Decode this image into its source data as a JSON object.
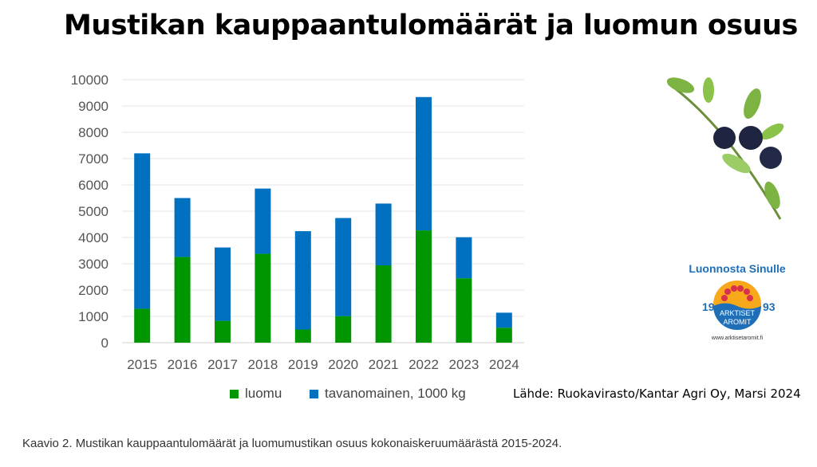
{
  "chart_data": {
    "type": "bar",
    "stacked": true,
    "title": "Mustikan kauppaantulomäärät ja luomun osuus",
    "categories": [
      "2015",
      "2016",
      "2017",
      "2018",
      "2019",
      "2020",
      "2021",
      "2022",
      "2023",
      "2024"
    ],
    "series": [
      {
        "name": "luomu",
        "color": "#009600",
        "values": [
          1290,
          3260,
          830,
          3380,
          500,
          1010,
          2940,
          4270,
          2450,
          570
        ]
      },
      {
        "name": "tavanomainen, 1000 kg",
        "color": "#0070C0",
        "values": [
          5910,
          2240,
          2790,
          2480,
          3740,
          3730,
          2350,
          5070,
          1560,
          570
        ]
      }
    ],
    "ylim": [
      0,
      10000
    ],
    "yticks": [
      0,
      1000,
      2000,
      3000,
      4000,
      5000,
      6000,
      7000,
      8000,
      9000,
      10000
    ],
    "grid": true,
    "legend": "bottom"
  },
  "source": "Lähde: Ruokavirasto/Kantar Agri Oy, Marsi 2024",
  "caption": "Kaavio 2. Mustikan kauppaantulomäärät ja luomumustikan osuus kokonaiskeruumäärästä 2015-2024.",
  "logo": {
    "top": "Luonnosta Sinulle",
    "year_left": "19",
    "year_right": "93",
    "name1": "ARKTISET",
    "name2": "AROMIT",
    "url": "www.arktisetaromit.fi"
  }
}
